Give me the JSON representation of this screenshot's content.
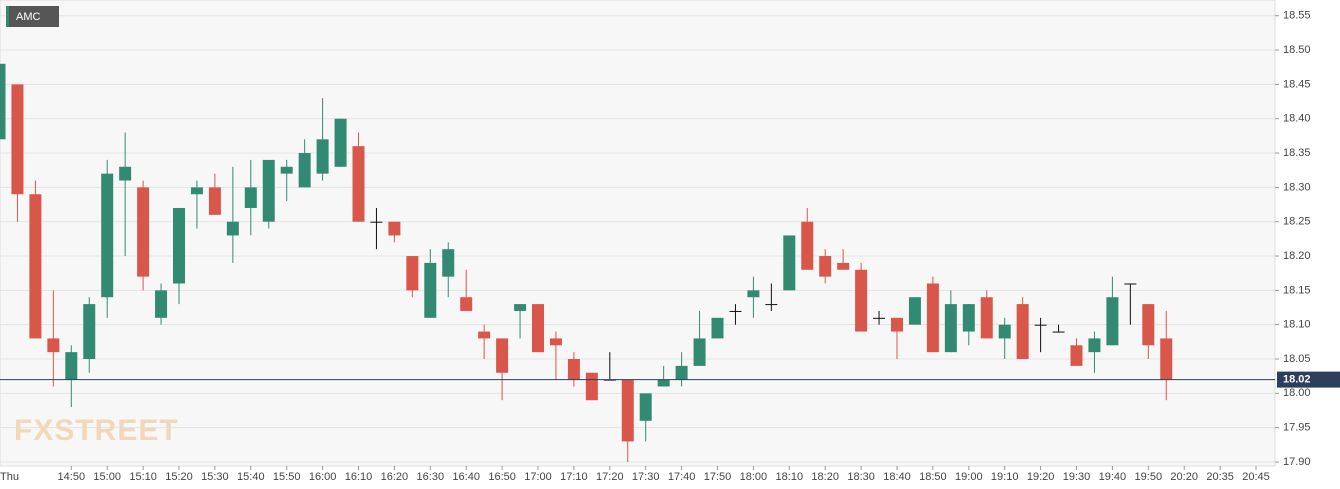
{
  "chart_data": {
    "type": "candlestick",
    "legend": "AMC",
    "watermark": "FXSTREET",
    "categories": [
      "Thu",
      null,
      null,
      null,
      "14:50",
      null,
      "15:00",
      null,
      "15:10",
      null,
      "15:20",
      null,
      "15:30",
      null,
      "15:40",
      null,
      "15:50",
      null,
      "16:00",
      null,
      "16:10",
      null,
      "16:20",
      null,
      "16:30",
      null,
      "16:40",
      null,
      "16:50",
      null,
      "17:00",
      null,
      "17:10",
      null,
      "17:20",
      null,
      "17:30",
      null,
      "17:40",
      null,
      "17:50",
      null,
      "18:00",
      null,
      "18:10",
      null,
      "18:20",
      null,
      "18:30",
      null,
      "18:40",
      null,
      "18:50",
      null,
      "19:00",
      null,
      "19:10",
      null,
      "19:20",
      null,
      "19:30",
      null,
      "19:40",
      null,
      "19:50",
      null,
      "20:20",
      null,
      "20:35",
      null,
      "20:45"
    ],
    "open": [
      18.37,
      18.45,
      18.29,
      18.08,
      18.02,
      18.05,
      18.14,
      18.31,
      18.3,
      18.11,
      18.16,
      18.29,
      18.3,
      18.23,
      18.27,
      18.25,
      18.32,
      18.3,
      18.32,
      18.33,
      18.36,
      18.25,
      18.25,
      18.2,
      18.11,
      18.17,
      18.14,
      18.09,
      18.08,
      18.12,
      18.13,
      18.08,
      18.05,
      18.03,
      18.02,
      18.02,
      17.96,
      18.01,
      18.02,
      18.04,
      18.08,
      18.12,
      18.14,
      18.13,
      18.15,
      18.25,
      18.2,
      18.19,
      18.18,
      18.11,
      18.11,
      18.1,
      18.16,
      18.06,
      18.09,
      18.14,
      18.08,
      18.13,
      18.1,
      18.09,
      18.07,
      18.06,
      18.07,
      18.16,
      18.13,
      18.08,
      null,
      null,
      null,
      null,
      null
    ],
    "high": [
      18.57,
      18.45,
      18.31,
      18.15,
      18.07,
      18.14,
      18.34,
      18.38,
      18.31,
      18.16,
      18.27,
      18.31,
      18.32,
      18.33,
      18.34,
      18.34,
      18.34,
      18.37,
      18.43,
      18.4,
      18.38,
      18.27,
      18.25,
      18.2,
      18.21,
      18.22,
      18.18,
      18.1,
      18.08,
      18.13,
      18.13,
      18.09,
      18.06,
      18.03,
      18.06,
      18.02,
      18.0,
      18.04,
      18.06,
      18.12,
      18.11,
      18.13,
      18.17,
      18.16,
      18.23,
      18.27,
      18.21,
      18.21,
      18.19,
      18.12,
      18.11,
      18.14,
      18.17,
      18.15,
      18.13,
      18.15,
      18.11,
      18.14,
      18.11,
      18.1,
      18.08,
      18.09,
      18.17,
      18.16,
      18.13,
      18.12,
      null,
      null,
      null,
      null,
      null
    ],
    "low": [
      18.37,
      18.25,
      18.08,
      18.01,
      17.98,
      18.03,
      18.11,
      18.2,
      18.15,
      18.1,
      18.13,
      18.24,
      18.26,
      18.19,
      18.23,
      18.24,
      18.28,
      18.3,
      18.31,
      18.33,
      18.25,
      18.21,
      18.22,
      18.14,
      18.11,
      18.14,
      18.12,
      18.05,
      17.99,
      18.08,
      18.06,
      18.02,
      18.01,
      17.99,
      18.02,
      17.9,
      17.93,
      18.01,
      18.01,
      18.04,
      18.08,
      18.1,
      18.11,
      18.12,
      18.15,
      18.18,
      18.16,
      18.18,
      18.09,
      18.1,
      18.05,
      18.1,
      18.06,
      18.06,
      18.07,
      18.08,
      18.05,
      18.05,
      18.06,
      18.09,
      18.04,
      18.03,
      18.07,
      18.1,
      18.05,
      17.99,
      null,
      null,
      null,
      null,
      null
    ],
    "close": [
      18.48,
      18.29,
      18.08,
      18.06,
      18.06,
      18.13,
      18.32,
      18.33,
      18.17,
      18.15,
      18.27,
      18.3,
      18.26,
      18.25,
      18.3,
      18.34,
      18.33,
      18.35,
      18.37,
      18.4,
      18.25,
      18.25,
      18.23,
      18.15,
      18.19,
      18.21,
      18.12,
      18.08,
      18.03,
      18.13,
      18.06,
      18.07,
      18.02,
      17.99,
      18.02,
      17.93,
      18.0,
      18.02,
      18.04,
      18.08,
      18.11,
      18.12,
      18.15,
      18.13,
      18.23,
      18.18,
      18.17,
      18.18,
      18.09,
      18.11,
      18.09,
      18.14,
      18.06,
      18.13,
      18.13,
      18.08,
      18.1,
      18.05,
      18.1,
      18.09,
      18.04,
      18.08,
      18.14,
      18.16,
      18.07,
      18.02,
      null,
      null,
      null,
      null,
      null
    ],
    "up_color": "#338a73",
    "down_color": "#d9574a",
    "last_price": 18.02,
    "ylim": [
      17.9,
      18.57
    ],
    "yticks": [
      {
        "value": 17.9,
        "label": "17.90"
      },
      17.95,
      {
        "value": 18.0,
        "label": "18.00"
      },
      18.05,
      {
        "value": 18.1,
        "label": "18.10"
      },
      18.15,
      {
        "value": 18.2,
        "label": "18.20"
      },
      18.25,
      {
        "value": 18.3,
        "label": "18.30"
      },
      18.35,
      {
        "value": 18.4,
        "label": "18.40"
      },
      18.45,
      {
        "value": 18.5,
        "label": "18.50"
      },
      18.55
    ],
    "grid": true
  }
}
